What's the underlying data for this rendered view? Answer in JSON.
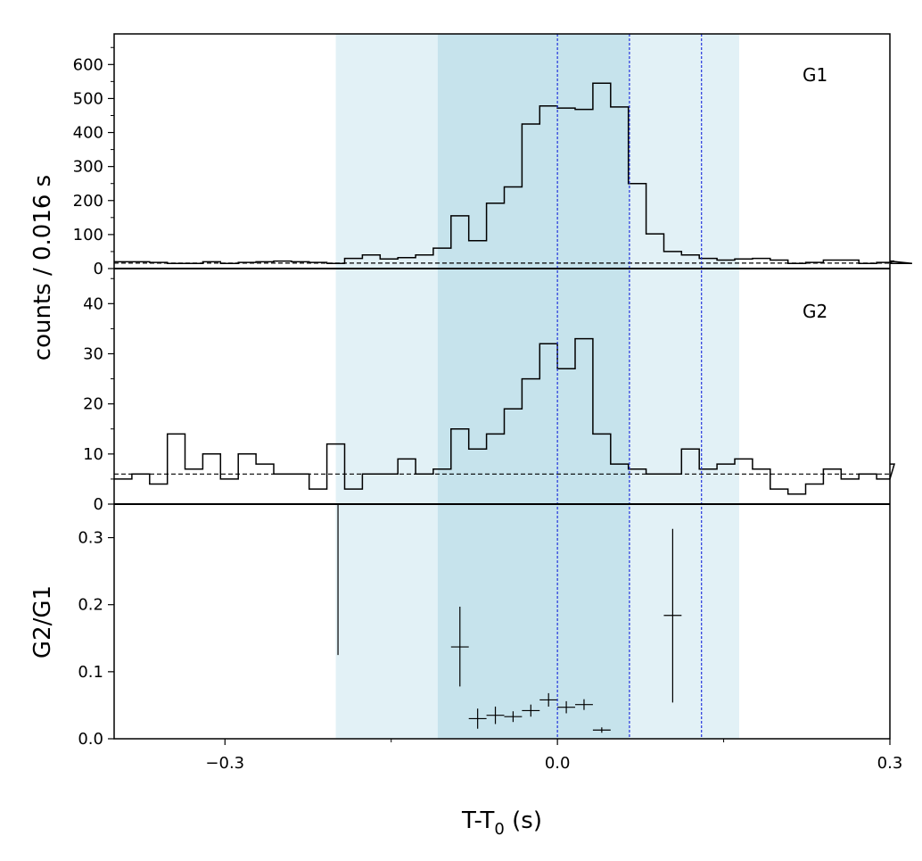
{
  "chart_data": {
    "type": "line",
    "x_axis": {
      "label_main": "T-T",
      "label_sub": "0",
      "label_unit": " (s)",
      "range": [
        -0.4,
        0.3
      ],
      "ticks": [
        {
          "value": -0.3,
          "label": "−0.3"
        },
        {
          "value": 0.0,
          "label": "0.0"
        },
        {
          "value": 0.3,
          "label": "0.3"
        }
      ]
    },
    "shared_ylabel": "counts /  0.016 s",
    "shaded_regions": [
      {
        "x0": -0.2,
        "x1": 0.164,
        "color": "#e2f1f6"
      },
      {
        "x0": -0.108,
        "x1": 0.065,
        "color": "#c6e3ec"
      }
    ],
    "reference_lines": [
      {
        "x": 0.0,
        "color": "#2233dd"
      },
      {
        "x": 0.065,
        "color": "#2233dd"
      },
      {
        "x": 0.13,
        "color": "#2233dd"
      }
    ],
    "panels": [
      {
        "label": "G1",
        "type": "step",
        "ylim": [
          0,
          690
        ],
        "yticks": [
          0,
          100,
          200,
          300,
          400,
          500,
          600
        ],
        "minor_yticks": [
          50,
          150,
          250,
          350,
          450,
          550,
          650
        ],
        "background_level": 16,
        "bin_width": 0.016,
        "x_start": -0.4,
        "values": [
          20,
          20,
          18,
          15,
          15,
          20,
          15,
          18,
          20,
          22,
          20,
          18,
          15,
          30,
          40,
          28,
          32,
          40,
          60,
          155,
          82,
          192,
          240,
          425,
          478,
          472,
          468,
          545,
          475,
          250,
          102,
          50,
          40,
          30,
          25,
          28,
          30,
          25,
          15,
          18,
          25,
          25,
          15,
          18,
          22,
          15
        ]
      },
      {
        "label": "G2",
        "type": "step",
        "ylim": [
          0,
          47
        ],
        "yticks": [
          0,
          10,
          20,
          30,
          40
        ],
        "minor_yticks": [
          5,
          15,
          25,
          35,
          45
        ],
        "background_level": 6,
        "bin_width": 0.016,
        "x_start": -0.4,
        "values": [
          5,
          6,
          4,
          14,
          7,
          10,
          5,
          10,
          8,
          6,
          6,
          3,
          12,
          3,
          6,
          6,
          9,
          6,
          7,
          15,
          11,
          14,
          19,
          25,
          32,
          27,
          33,
          14,
          8,
          7,
          6,
          6,
          11,
          7,
          8,
          9,
          7,
          3,
          2,
          4,
          7,
          5,
          6,
          5,
          8
        ]
      },
      {
        "label": "",
        "ylabel": "G2/G1",
        "type": "errorbar",
        "ylim": [
          0,
          0.35
        ],
        "yticks": [
          0.0,
          0.1,
          0.2,
          0.3
        ],
        "tick_labels": [
          "0.0",
          "0.1",
          "0.2",
          "0.3"
        ],
        "points": [
          {
            "x": -0.198,
            "y": 0.235,
            "xerr": 0.0,
            "ylo": 0.125,
            "yhi": 0.35
          },
          {
            "x": -0.088,
            "y": 0.137,
            "xerr": 0.008,
            "ylo": 0.078,
            "yhi": 0.197
          },
          {
            "x": -0.072,
            "y": 0.03,
            "xerr": 0.008,
            "ylo": 0.015,
            "yhi": 0.045
          },
          {
            "x": -0.056,
            "y": 0.035,
            "xerr": 0.008,
            "ylo": 0.022,
            "yhi": 0.048
          },
          {
            "x": -0.04,
            "y": 0.033,
            "xerr": 0.008,
            "ylo": 0.025,
            "yhi": 0.041
          },
          {
            "x": -0.024,
            "y": 0.042,
            "xerr": 0.008,
            "ylo": 0.033,
            "yhi": 0.051
          },
          {
            "x": -0.008,
            "y": 0.058,
            "xerr": 0.008,
            "ylo": 0.048,
            "yhi": 0.068
          },
          {
            "x": 0.008,
            "y": 0.047,
            "xerr": 0.008,
            "ylo": 0.038,
            "yhi": 0.056
          },
          {
            "x": 0.024,
            "y": 0.051,
            "xerr": 0.008,
            "ylo": 0.043,
            "yhi": 0.059
          },
          {
            "x": 0.04,
            "y": 0.013,
            "xerr": 0.008,
            "ylo": 0.009,
            "yhi": 0.017
          },
          {
            "x": 0.104,
            "y": 0.184,
            "xerr": 0.008,
            "ylo": 0.054,
            "yhi": 0.313
          }
        ]
      }
    ]
  }
}
